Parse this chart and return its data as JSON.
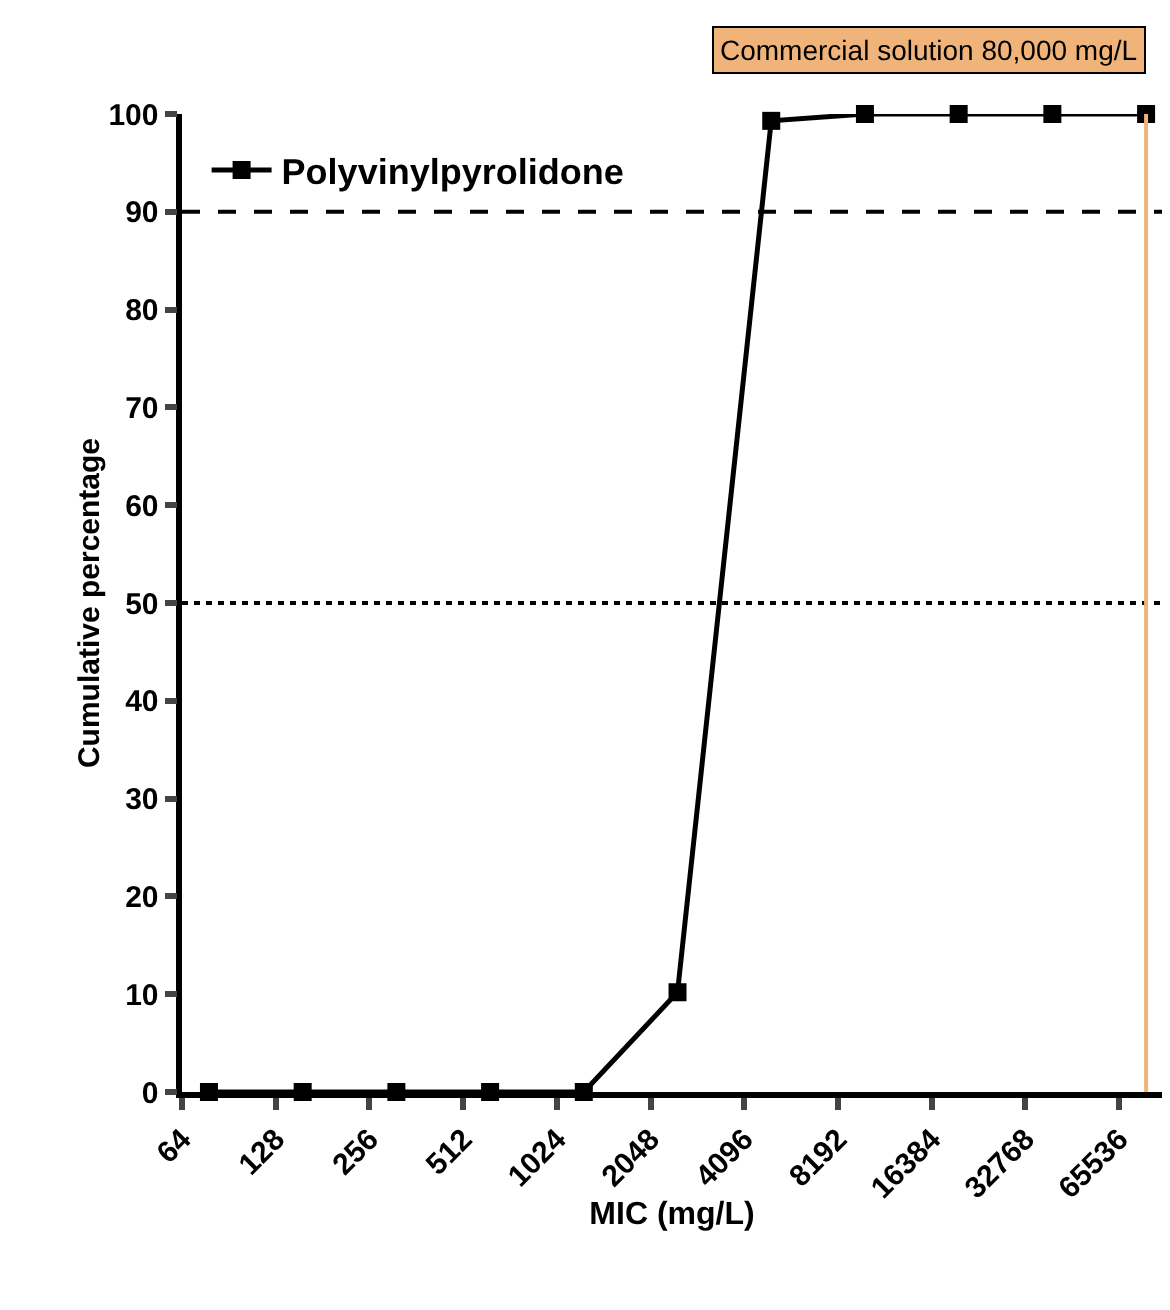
{
  "chart_data": {
    "type": "line",
    "xlabel": "MIC (mg/L)",
    "ylabel": "Cumulative percentage",
    "x": [
      78.125,
      156.25,
      312.5,
      625,
      1250,
      2500,
      5000,
      10000,
      20000,
      40000,
      80000
    ],
    "series": [
      {
        "name": "Polyvinylpyrolidone",
        "color": "#000000",
        "values": [
          0,
          0,
          0,
          0,
          0,
          10.2,
          99.3,
          100,
          100,
          100,
          100
        ]
      }
    ],
    "log": "x",
    "xlim": [
      64,
      90000
    ],
    "xticks": [
      64,
      128,
      256,
      512,
      1024,
      2048,
      4096,
      8192,
      16384,
      32768,
      65536
    ],
    "ylim": [
      0,
      100
    ],
    "yticks": [
      0,
      10,
      20,
      30,
      40,
      50,
      60,
      70,
      80,
      90,
      100
    ],
    "ref_lines": [
      {
        "axis": "y",
        "value": 90,
        "line_style": "dashed",
        "color": "#000000"
      },
      {
        "axis": "y",
        "value": 50,
        "line_style": "dotted",
        "color": "#000000"
      },
      {
        "axis": "x",
        "value": 80000,
        "label": "Commercial solution 80,000 mg/L",
        "color": "#f0b47a"
      }
    ],
    "legend": "top left",
    "marker": "square",
    "line_style": "solid"
  }
}
